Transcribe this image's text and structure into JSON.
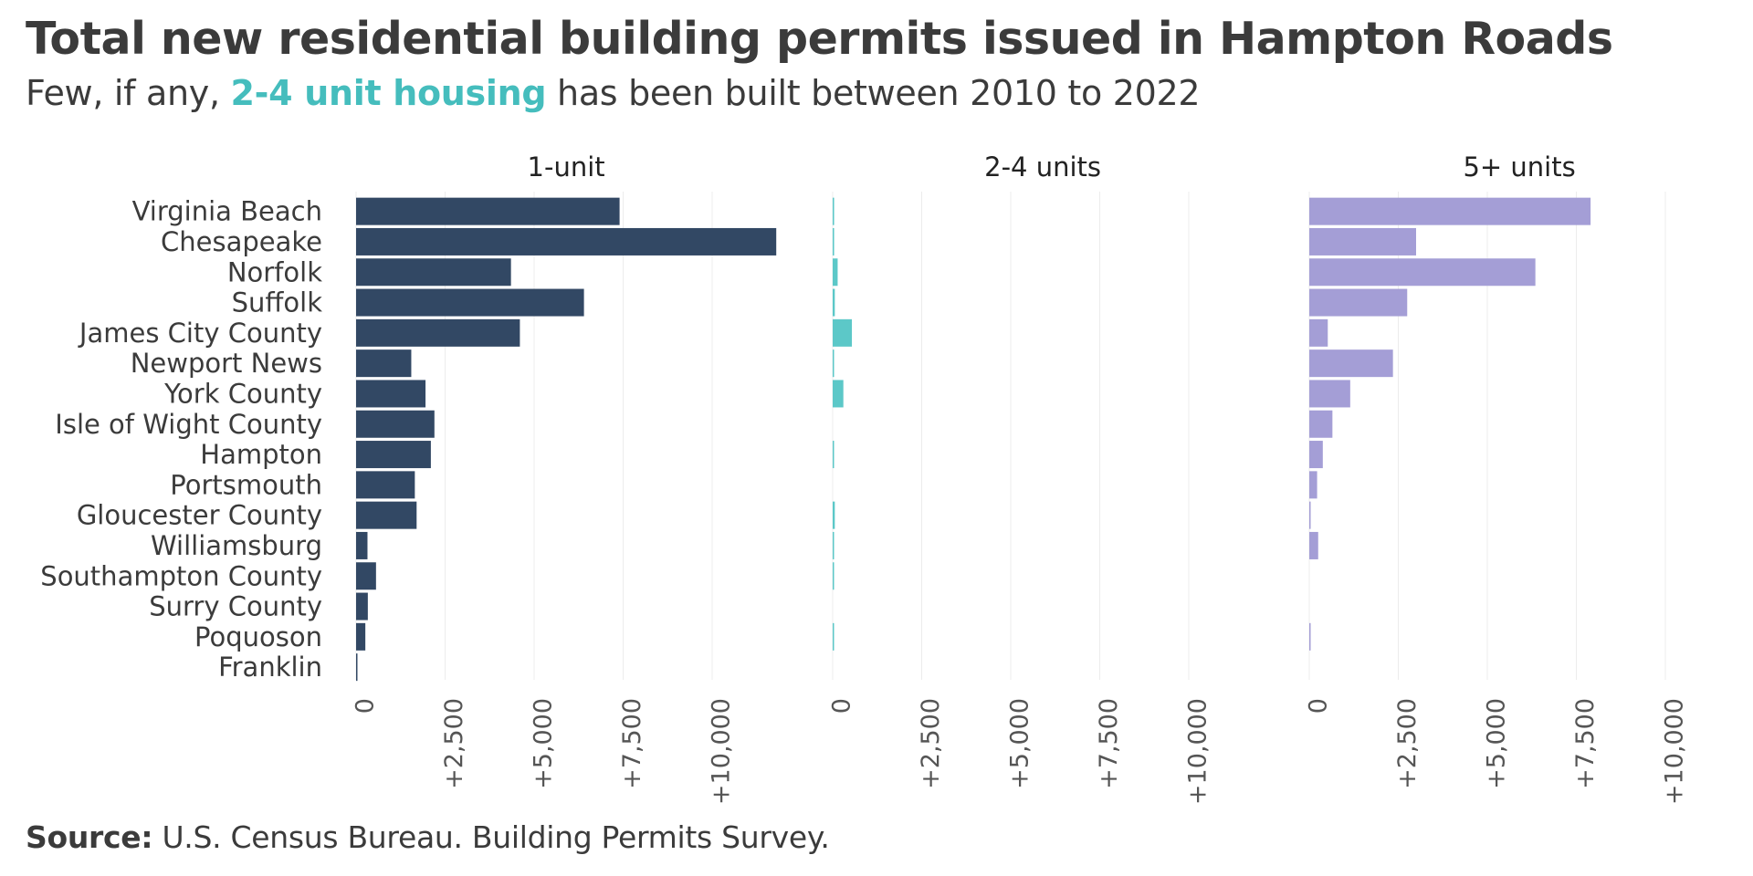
{
  "title": "Total new residential building permits issued in Hampton Roads",
  "subtitle": {
    "before": "Few, if any, ",
    "highlight": "2-4 unit housing",
    "after": " has been built between 2010 to 2022"
  },
  "source": {
    "label": "Source:",
    "text": " U.S. Census Bureau. Building Permits Survey."
  },
  "colors": {
    "one_unit": "#324864",
    "two_four": "#5cc8c8",
    "five_plus": "#a49ed6",
    "highlight": "#45bdbd",
    "grid": "#ececec",
    "text": "#3b3b3b"
  },
  "chart_data": {
    "type": "bar",
    "orientation": "horizontal",
    "categories": [
      "Virginia Beach",
      "Chesapeake",
      "Norfolk",
      "Suffolk",
      "James City County",
      "Newport News",
      "York County",
      "Isle of Wight County",
      "Hampton",
      "Portsmouth",
      "Gloucester County",
      "Williamsburg",
      "Southampton County",
      "Surry County",
      "Poquoson",
      "Franklin"
    ],
    "panels": [
      {
        "name": "1-unit",
        "values": [
          7400,
          11800,
          4350,
          6400,
          4600,
          1550,
          1950,
          2200,
          2100,
          1650,
          1700,
          320,
          560,
          330,
          260,
          30
        ],
        "xlim": [
          0,
          11800
        ]
      },
      {
        "name": "2-4 units",
        "values": [
          40,
          40,
          140,
          60,
          540,
          20,
          300,
          0,
          30,
          0,
          60,
          20,
          20,
          0,
          20,
          0
        ],
        "xlim": [
          0,
          11800
        ]
      },
      {
        "name": "5+ units",
        "values": [
          7900,
          3000,
          6350,
          2750,
          520,
          2350,
          1150,
          650,
          380,
          220,
          30,
          250,
          0,
          0,
          20,
          0
        ],
        "xlim": [
          0,
          11800
        ]
      }
    ],
    "xticks": [
      0,
      2500,
      5000,
      7500,
      10000
    ],
    "xtick_labels": [
      "0",
      "+2,500",
      "+5,000",
      "+7,500",
      "+10,000"
    ],
    "xlabel": "",
    "ylabel": "",
    "grid": true,
    "legend": "none"
  }
}
